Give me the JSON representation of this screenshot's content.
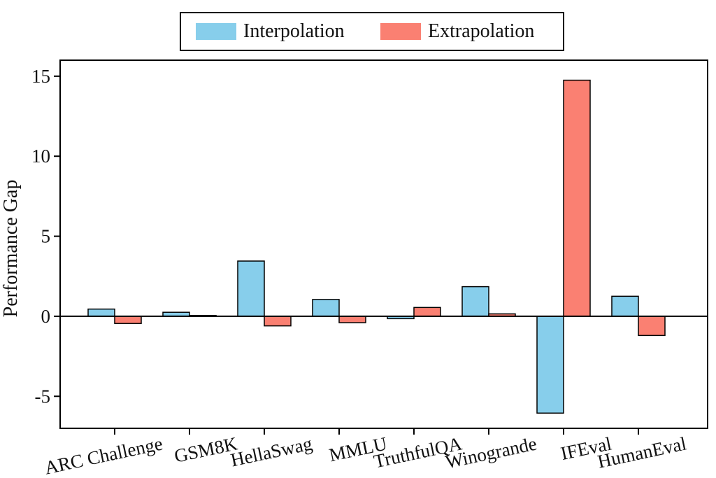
{
  "chart_data": {
    "type": "bar",
    "title": "",
    "xlabel": "",
    "ylabel": "Performance Gap",
    "ylim": [
      -7,
      16
    ],
    "yticks": [
      -5,
      0,
      5,
      10,
      15
    ],
    "ytick_labels": [
      "-5",
      "0",
      "5",
      "10",
      "15"
    ],
    "categories": [
      "ARC Challenge",
      "GSM8K",
      "HellaSwag",
      "MMLU",
      "TruthfulQA",
      "Winogrande",
      "IFEval",
      "HumanEval"
    ],
    "series": [
      {
        "name": "Interpolation",
        "color": "#87CEEB",
        "values": [
          0.45,
          0.25,
          3.45,
          1.05,
          -0.15,
          1.85,
          -6.05,
          1.25
        ]
      },
      {
        "name": "Extrapolation",
        "color": "#FA8072",
        "values": [
          -0.45,
          0.05,
          -0.6,
          -0.4,
          0.55,
          0.15,
          14.75,
          -1.2
        ]
      }
    ],
    "legend_position": "top-center",
    "grid": false
  }
}
